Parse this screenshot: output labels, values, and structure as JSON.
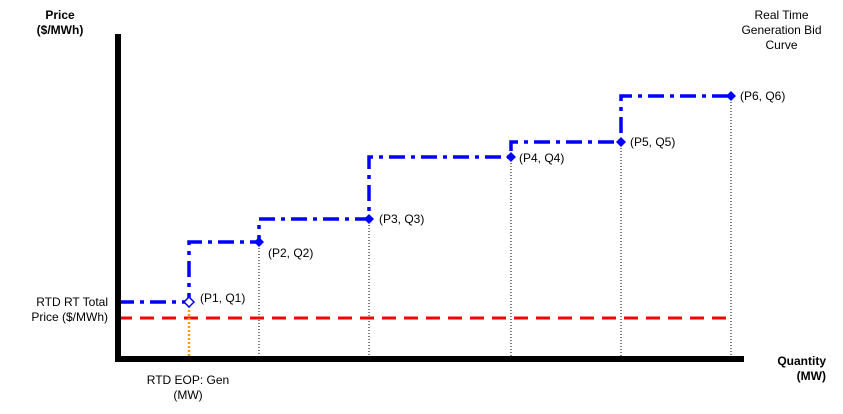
{
  "y_axis_label": [
    "Price",
    "($/MWh)"
  ],
  "x_axis_label": [
    "Quantity",
    "(MW)"
  ],
  "curve_title": [
    "Real Time",
    "Generation Bid",
    "Curve"
  ],
  "price_label": [
    "RTD RT Total",
    "Price ($/MWh)"
  ],
  "eop_label": [
    "RTD EOP: Gen",
    "(MW)"
  ],
  "points": [
    {
      "label": "(P1, Q1)"
    },
    {
      "label": "(P2, Q2)"
    },
    {
      "label": "(P3, Q3)"
    },
    {
      "label": "(P4, Q4)"
    },
    {
      "label": "(P5, Q5)"
    },
    {
      "label": "(P6, Q6)"
    }
  ],
  "colors": {
    "axis": "#000000",
    "bid_curve": "#0000ff",
    "price_line": "#ff0000",
    "eop_line": "#ff9900",
    "dotted": "#000000"
  }
}
